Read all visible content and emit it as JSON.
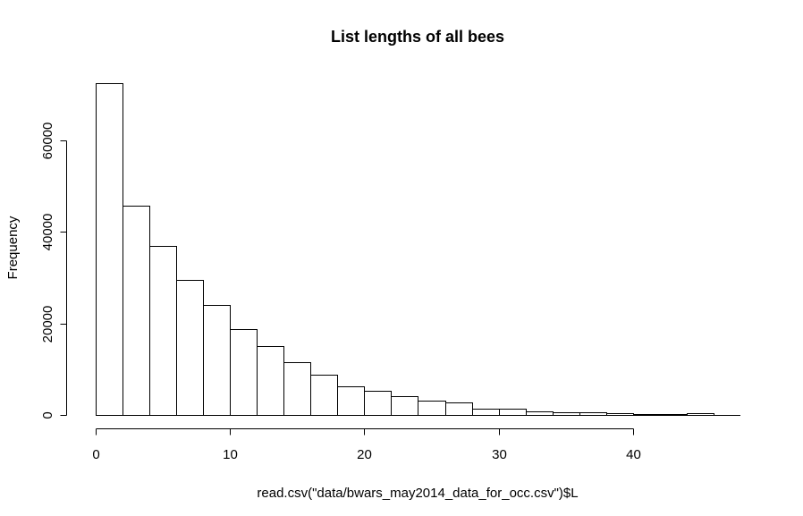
{
  "chart_data": {
    "type": "bar",
    "title": "List lengths of all bees",
    "xlabel": "read.csv(\"data/bwars_may2014_data_for_occ.csv\")$L",
    "ylabel": "Frequency",
    "bin_width": 2,
    "bins": [
      {
        "x0": 0,
        "x1": 2,
        "count": 72500
      },
      {
        "x0": 2,
        "x1": 4,
        "count": 45700
      },
      {
        "x0": 4,
        "x1": 6,
        "count": 37000
      },
      {
        "x0": 6,
        "x1": 8,
        "count": 29600
      },
      {
        "x0": 8,
        "x1": 10,
        "count": 24100
      },
      {
        "x0": 10,
        "x1": 12,
        "count": 18800
      },
      {
        "x0": 12,
        "x1": 14,
        "count": 15000
      },
      {
        "x0": 14,
        "x1": 16,
        "count": 11500
      },
      {
        "x0": 16,
        "x1": 18,
        "count": 8800
      },
      {
        "x0": 18,
        "x1": 20,
        "count": 6300
      },
      {
        "x0": 20,
        "x1": 22,
        "count": 5300
      },
      {
        "x0": 22,
        "x1": 24,
        "count": 4200
      },
      {
        "x0": 24,
        "x1": 26,
        "count": 3200
      },
      {
        "x0": 26,
        "x1": 28,
        "count": 2800
      },
      {
        "x0": 28,
        "x1": 30,
        "count": 1400
      },
      {
        "x0": 30,
        "x1": 32,
        "count": 1400
      },
      {
        "x0": 32,
        "x1": 34,
        "count": 800
      },
      {
        "x0": 34,
        "x1": 36,
        "count": 600
      },
      {
        "x0": 36,
        "x1": 38,
        "count": 500
      },
      {
        "x0": 38,
        "x1": 40,
        "count": 400
      },
      {
        "x0": 40,
        "x1": 42,
        "count": 200
      },
      {
        "x0": 42,
        "x1": 44,
        "count": 150
      },
      {
        "x0": 44,
        "x1": 46,
        "count": 300
      }
    ],
    "xticks": [
      0,
      10,
      20,
      30,
      40
    ],
    "xtick_labels": [
      "0",
      "10",
      "20",
      "30",
      "40"
    ],
    "yticks": [
      0,
      20000,
      40000,
      60000
    ],
    "ytick_labels": [
      "0",
      "20000",
      "40000",
      "60000"
    ],
    "xlim": [
      0,
      48
    ],
    "ylim": [
      0,
      72500
    ],
    "grid": false,
    "legend": "none",
    "colors": {
      "bar_fill": "#ffffff",
      "bar_stroke": "#000000",
      "background": "#ffffff"
    }
  }
}
